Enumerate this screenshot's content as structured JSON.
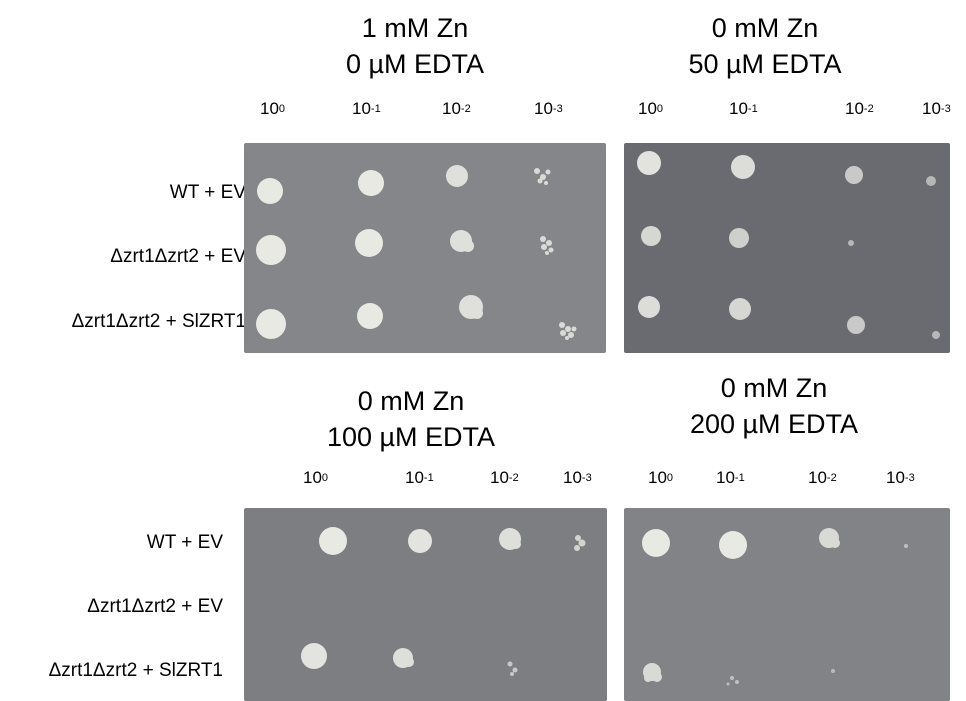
{
  "panels": [
    {
      "title_line1": "1 mM Zn",
      "title_line2": "0 µM EDTA",
      "dilutions": [
        {
          "base": "10",
          "exp": "0"
        },
        {
          "base": "10",
          "exp": "-1"
        },
        {
          "base": "10",
          "exp": "-2"
        },
        {
          "base": "10",
          "exp": "-3"
        }
      ],
      "rows": [
        "WT + EV",
        "Δzrt1Δzrt2 + EV",
        "Δzrt1Δzrt2 + SlZRT1"
      ]
    },
    {
      "title_line1": "0 mM Zn",
      "title_line2": "50 µM EDTA",
      "dilutions": [
        {
          "base": "10",
          "exp": "0"
        },
        {
          "base": "10",
          "exp": "-1"
        },
        {
          "base": "10",
          "exp": "-2"
        },
        {
          "base": "10",
          "exp": "-3"
        }
      ]
    },
    {
      "title_line1": "0 mM Zn",
      "title_line2": "100 µM EDTA",
      "dilutions": [
        {
          "base": "10",
          "exp": "0"
        },
        {
          "base": "10",
          "exp": "-1"
        },
        {
          "base": "10",
          "exp": "-2"
        },
        {
          "base": "10",
          "exp": "-3"
        }
      ],
      "rows": [
        "WT + EV",
        "Δzrt1Δzrt2 + EV",
        "Δzrt1Δzrt2 + SlZRT1"
      ]
    },
    {
      "title_line1": "0 mM Zn",
      "title_line2": "200 µM EDTA",
      "dilutions": [
        {
          "base": "10",
          "exp": "0"
        },
        {
          "base": "10",
          "exp": "-1"
        },
        {
          "base": "10",
          "exp": "-2"
        },
        {
          "base": "10",
          "exp": "-3"
        }
      ]
    }
  ],
  "colors": {
    "plate_top_left": "#85868a",
    "plate_top_right": "#6a6b70",
    "plate_bottom_left": "#7d7e82",
    "plate_bottom_right": "#828387",
    "colony": "#e9e9e4"
  }
}
